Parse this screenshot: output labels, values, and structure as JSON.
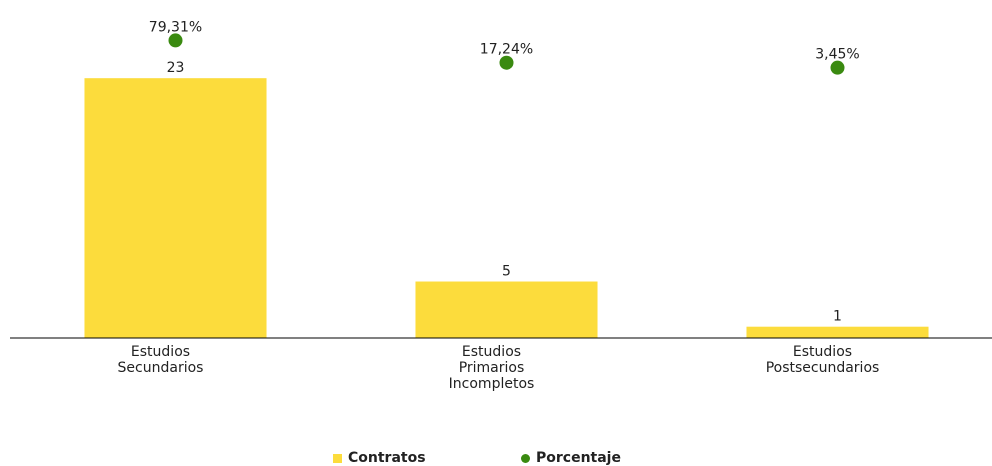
{
  "chart_data": {
    "type": "bar",
    "categories": [
      "Estudios Secundarios",
      "Estudios Primarios Incompletos",
      "Estudios Postsecundarios"
    ],
    "series": [
      {
        "name": "Contratos",
        "type": "bar",
        "color": "#fcdc3c",
        "values": [
          23,
          5,
          1
        ]
      },
      {
        "name": "Porcentaje",
        "type": "scatter",
        "axis": "y2",
        "color": "#3a8a10",
        "values": [
          79.31,
          17.24,
          3.45
        ],
        "value_labels": [
          "79,31%",
          "17,24%",
          "3,45%"
        ]
      }
    ],
    "ylim": [
      0,
      27
    ],
    "y2lim": [
      -750,
      100
    ],
    "legend": "bottom"
  }
}
